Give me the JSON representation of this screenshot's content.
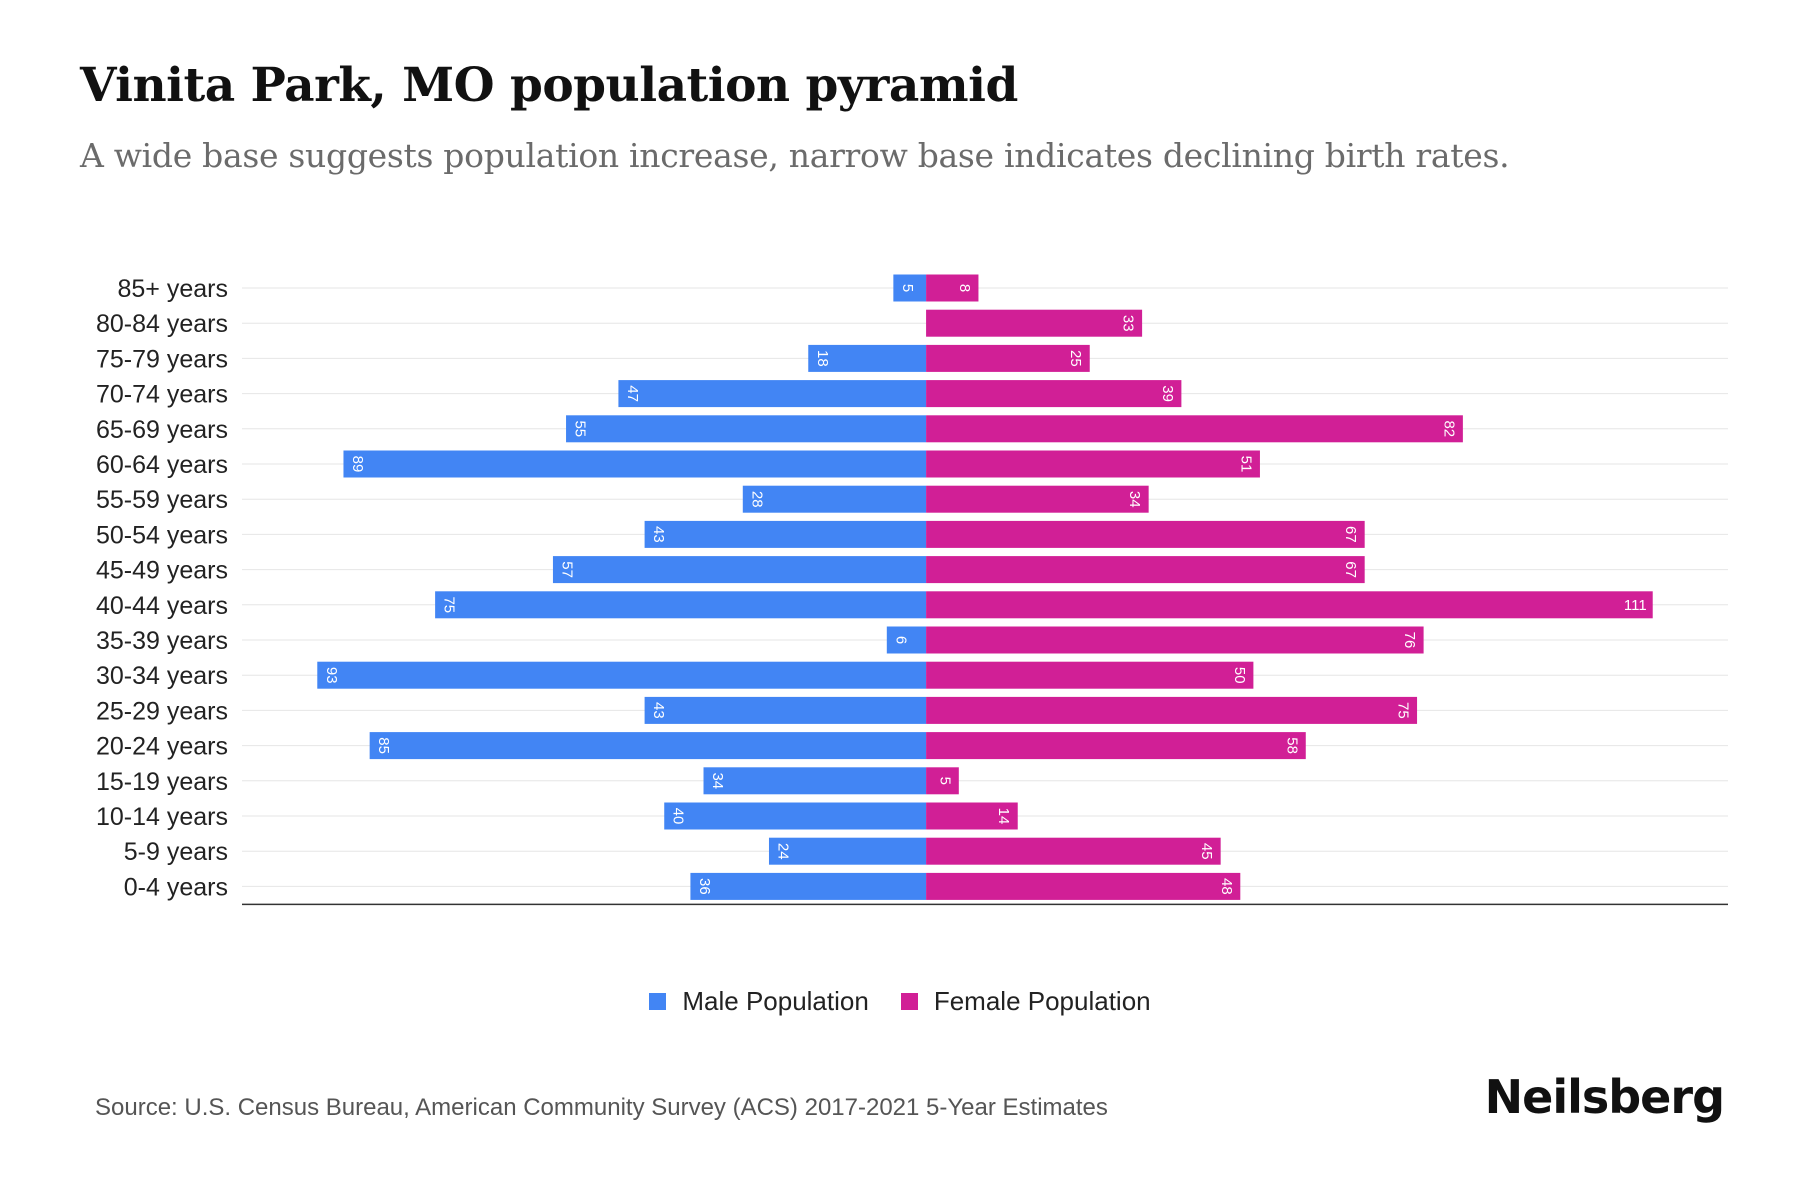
{
  "header": {
    "title": "Vinita Park, MO population pyramid",
    "subtitle": "A wide base suggests population increase, narrow base indicates declining birth rates."
  },
  "legend": {
    "male_label": "Male Population",
    "female_label": "Female Population"
  },
  "footer": {
    "source": "Source: U.S. Census Bureau, American Community Survey (ACS) 2017-2021 5-Year Estimates",
    "brand": "Neilsberg"
  },
  "colors": {
    "male": "#4285f4",
    "female": "#d11f96",
    "grid": "#e6e6e6",
    "axis": "#333333"
  },
  "chart_data": {
    "type": "bar",
    "orientation": "horizontal",
    "title": "Vinita Park, MO population pyramid",
    "categories": [
      "85+ years",
      "80-84 years",
      "75-79 years",
      "70-74 years",
      "65-69 years",
      "60-64 years",
      "55-59 years",
      "50-54 years",
      "45-49 years",
      "40-44 years",
      "35-39 years",
      "30-34 years",
      "25-29 years",
      "20-24 years",
      "15-19 years",
      "10-14 years",
      "5-9 years",
      "0-4 years"
    ],
    "series": [
      {
        "name": "Male Population",
        "values": [
          5,
          0,
          18,
          47,
          55,
          89,
          28,
          43,
          57,
          75,
          6,
          93,
          43,
          85,
          34,
          40,
          24,
          36
        ]
      },
      {
        "name": "Female Population",
        "values": [
          8,
          33,
          25,
          39,
          82,
          51,
          34,
          67,
          67,
          111,
          76,
          50,
          75,
          58,
          5,
          14,
          45,
          48
        ]
      }
    ],
    "xlim": [
      -104.5,
      122.5
    ],
    "legend_position": "bottom-center",
    "grid": true
  }
}
